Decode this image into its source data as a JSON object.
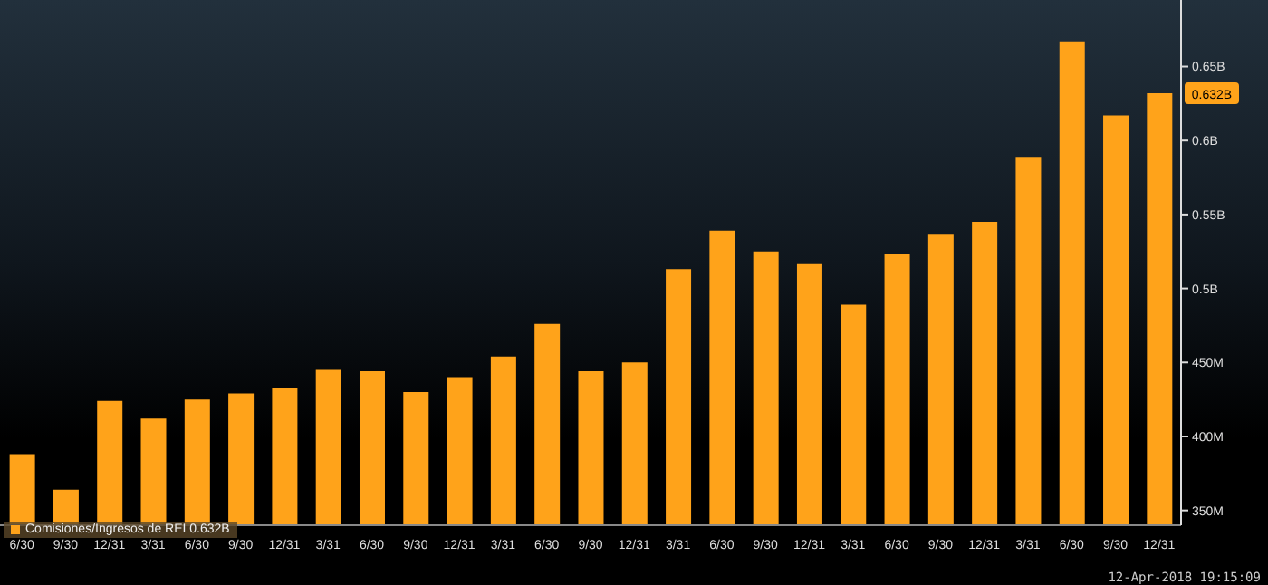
{
  "chart_data": {
    "type": "bar",
    "categories": [
      "6/30",
      "9/30",
      "12/31",
      "3/31",
      "6/30",
      "9/30",
      "12/31",
      "3/31",
      "6/30",
      "9/30",
      "12/31",
      "3/31",
      "6/30",
      "9/30",
      "12/31",
      "3/31",
      "6/30",
      "9/30",
      "12/31",
      "3/31",
      "6/30",
      "9/30",
      "12/31",
      "3/31",
      "6/30",
      "9/30",
      "12/31"
    ],
    "series": [
      {
        "name": "Comisiones/Ingresos de REI 0.632B",
        "color": "#ffa31a",
        "values": [
          388000000,
          364000000,
          424000000,
          412000000,
          425000000,
          429000000,
          433000000,
          445000000,
          444000000,
          430000000,
          440000000,
          454000000,
          476000000,
          444000000,
          450000000,
          513000000,
          539000000,
          525000000,
          517000000,
          489000000,
          523000000,
          537000000,
          545000000,
          589000000,
          667000000,
          617000000,
          632000000
        ]
      }
    ],
    "ylim": [
      340000000,
      695000000
    ],
    "yticks": [
      {
        "value": 350000000,
        "label": "350M"
      },
      {
        "value": 400000000,
        "label": "400M"
      },
      {
        "value": 450000000,
        "label": "450M"
      },
      {
        "value": 500000000,
        "label": "0.5B"
      },
      {
        "value": 550000000,
        "label": "0.55B"
      },
      {
        "value": 600000000,
        "label": "0.6B"
      },
      {
        "value": 650000000,
        "label": "0.65B"
      }
    ],
    "legend": "bottom left",
    "annotations": [
      {
        "text": "0.632B",
        "y": 632000000
      },
      "12-Apr-2018 19:15:09"
    ]
  }
}
